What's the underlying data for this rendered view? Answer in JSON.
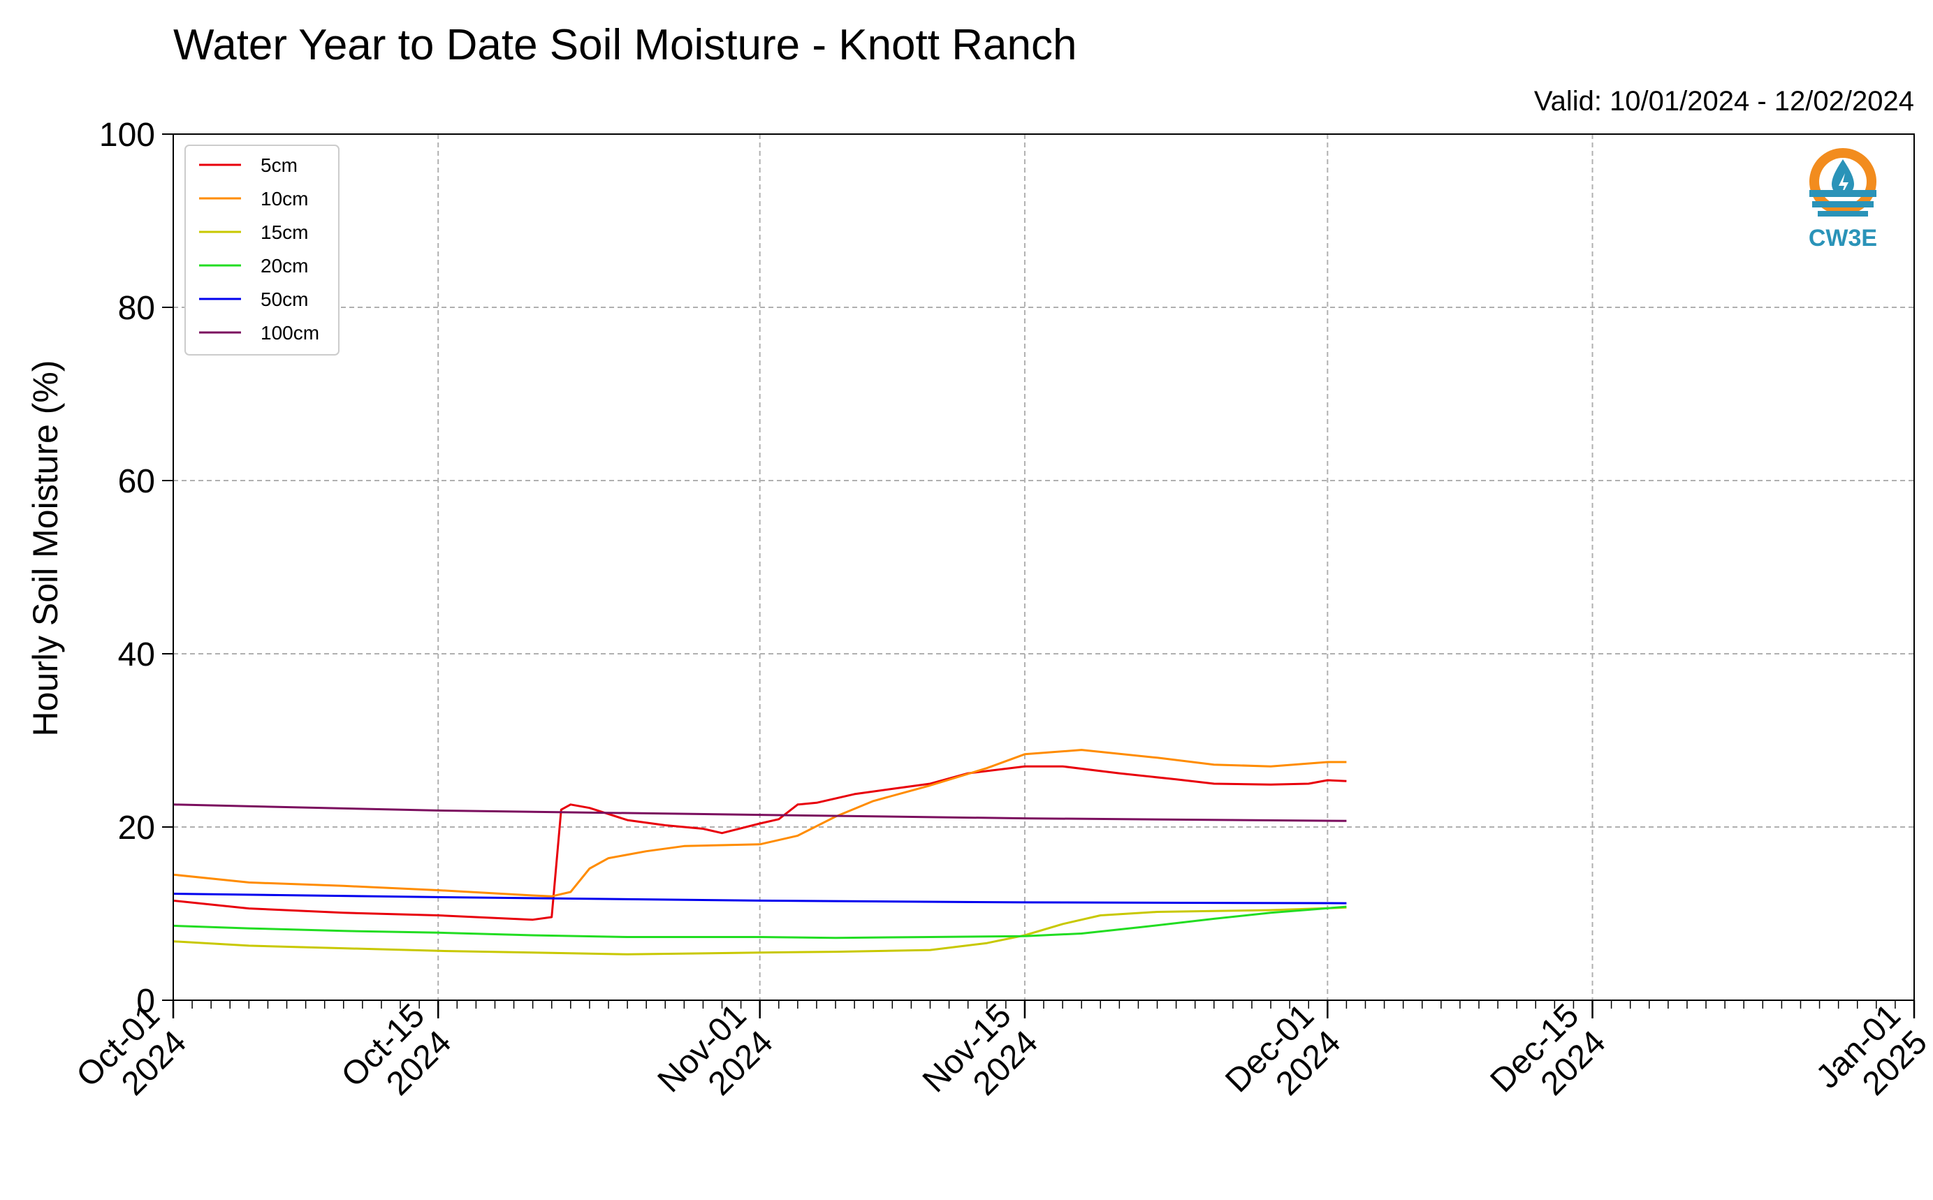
{
  "chart_data": {
    "type": "line",
    "title": "Water Year to Date Soil Moisture - Knott Ranch",
    "subtitle": "Valid: 10/01/2024 - 12/02/2024",
    "xlabel": "",
    "ylabel": "Hourly Soil Moisture (%)",
    "xlim": [
      "2024-10-01",
      "2025-01-01"
    ],
    "ylim": [
      0,
      100
    ],
    "grid": true,
    "legend_position": "upper-left",
    "yticks": [
      "0",
      "20",
      "40",
      "60",
      "80",
      "100"
    ],
    "xticks": [
      {
        "date": "2024-10-01",
        "line1": "Oct-01",
        "line2": "2024"
      },
      {
        "date": "2024-10-15",
        "line1": "Oct-15",
        "line2": "2024"
      },
      {
        "date": "2024-11-01",
        "line1": "Nov-01",
        "line2": "2024"
      },
      {
        "date": "2024-11-15",
        "line1": "Nov-15",
        "line2": "2024"
      },
      {
        "date": "2024-12-01",
        "line1": "Dec-01",
        "line2": "2024"
      },
      {
        "date": "2024-12-15",
        "line1": "Dec-15",
        "line2": "2024"
      },
      {
        "date": "2025-01-01",
        "line1": "Jan-01",
        "line2": "2025"
      }
    ],
    "series": [
      {
        "name": "5cm",
        "color": "#e8000b",
        "x": [
          "2024-10-01",
          "2024-10-05",
          "2024-10-10",
          "2024-10-15",
          "2024-10-20",
          "2024-10-21",
          "2024-10-21T12:00",
          "2024-10-22",
          "2024-10-23",
          "2024-10-25",
          "2024-10-27",
          "2024-10-29",
          "2024-10-30",
          "2024-11-01",
          "2024-11-02",
          "2024-11-03",
          "2024-11-04",
          "2024-11-06",
          "2024-11-08",
          "2024-11-10",
          "2024-11-12",
          "2024-11-15",
          "2024-11-17",
          "2024-11-20",
          "2024-11-23",
          "2024-11-25",
          "2024-11-28",
          "2024-11-30",
          "2024-12-01",
          "2024-12-02"
        ],
        "values": [
          11.5,
          10.6,
          10.1,
          9.8,
          9.3,
          9.6,
          22.0,
          22.6,
          22.2,
          20.8,
          20.2,
          19.8,
          19.3,
          20.4,
          20.9,
          22.6,
          22.8,
          23.8,
          24.4,
          25.0,
          26.2,
          27.0,
          27.0,
          26.2,
          25.5,
          25.0,
          24.9,
          25.0,
          25.4,
          25.3
        ]
      },
      {
        "name": "10cm",
        "color": "#ff8c00",
        "x": [
          "2024-10-01",
          "2024-10-05",
          "2024-10-10",
          "2024-10-15",
          "2024-10-20",
          "2024-10-21",
          "2024-10-22",
          "2024-10-23",
          "2024-10-24",
          "2024-10-26",
          "2024-10-28",
          "2024-10-30",
          "2024-11-01",
          "2024-11-03",
          "2024-11-05",
          "2024-11-07",
          "2024-11-10",
          "2024-11-13",
          "2024-11-15",
          "2024-11-18",
          "2024-11-22",
          "2024-11-25",
          "2024-11-28",
          "2024-12-01",
          "2024-12-02"
        ],
        "values": [
          14.5,
          13.6,
          13.2,
          12.7,
          12.1,
          12.0,
          12.5,
          15.2,
          16.4,
          17.2,
          17.8,
          17.9,
          18.0,
          19.0,
          21.2,
          23.0,
          24.8,
          26.8,
          28.4,
          28.9,
          28.0,
          27.2,
          27.0,
          27.5,
          27.5
        ]
      },
      {
        "name": "15cm",
        "color": "#c8c800",
        "x": [
          "2024-10-01",
          "2024-10-05",
          "2024-10-10",
          "2024-10-15",
          "2024-10-20",
          "2024-10-25",
          "2024-11-01",
          "2024-11-05",
          "2024-11-10",
          "2024-11-13",
          "2024-11-15",
          "2024-11-17",
          "2024-11-19",
          "2024-11-22",
          "2024-11-25",
          "2024-11-28",
          "2024-12-02"
        ],
        "values": [
          6.8,
          6.3,
          6.0,
          5.7,
          5.5,
          5.3,
          5.5,
          5.6,
          5.8,
          6.6,
          7.5,
          8.8,
          9.8,
          10.2,
          10.3,
          10.4,
          10.7
        ]
      },
      {
        "name": "20cm",
        "color": "#22dd22",
        "x": [
          "2024-10-01",
          "2024-10-05",
          "2024-10-10",
          "2024-10-15",
          "2024-10-20",
          "2024-10-25",
          "2024-11-01",
          "2024-11-05",
          "2024-11-10",
          "2024-11-15",
          "2024-11-18",
          "2024-11-21",
          "2024-11-25",
          "2024-11-28",
          "2024-12-02"
        ],
        "values": [
          8.6,
          8.3,
          8.0,
          7.8,
          7.5,
          7.3,
          7.3,
          7.2,
          7.3,
          7.4,
          7.7,
          8.4,
          9.4,
          10.1,
          10.8
        ]
      },
      {
        "name": "50cm",
        "color": "#0000ee",
        "x": [
          "2024-10-01",
          "2024-10-15",
          "2024-11-01",
          "2024-11-15",
          "2024-12-02"
        ],
        "values": [
          12.3,
          11.9,
          11.5,
          11.3,
          11.2
        ]
      },
      {
        "name": "100cm",
        "color": "#7b0e5e",
        "x": [
          "2024-10-01",
          "2024-10-15",
          "2024-11-01",
          "2024-11-15",
          "2024-12-02"
        ],
        "values": [
          22.6,
          21.9,
          21.4,
          21.0,
          20.7
        ]
      }
    ]
  },
  "logo": {
    "text": "CW3E",
    "color": "#2a93b8",
    "accent": "#f28c1e"
  }
}
